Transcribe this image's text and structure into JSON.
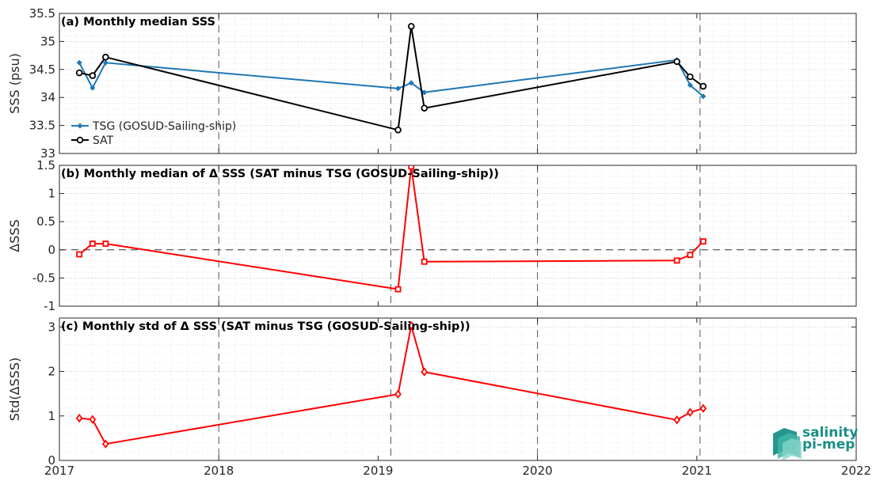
{
  "chart_data": [
    {
      "type": "line",
      "title": "(a) Monthly median SSS",
      "ylabel": "SSS (psu)",
      "xlim": [
        2017,
        2022
      ],
      "ylim": [
        33,
        35.5
      ],
      "yticks": [
        "33",
        "33.5",
        "34",
        "34.5",
        "35",
        "35.5"
      ],
      "grid": true,
      "legend_position": "bottom-left",
      "series": [
        {
          "name": "TSG (GOSUD-Sailing-ship)",
          "color": "#1f77b4",
          "marker": "filled-diamond",
          "x": [
            2017.125,
            2017.208,
            2017.29,
            2019.125,
            2019.208,
            2019.29,
            2020.875,
            2020.958,
            2021.04
          ],
          "y": [
            34.62,
            34.17,
            34.62,
            34.16,
            34.26,
            34.09,
            34.67,
            34.22,
            34.02
          ]
        },
        {
          "name": "SAT",
          "color": "#000000",
          "marker": "open-circle",
          "x": [
            2017.125,
            2017.208,
            2017.29,
            2019.125,
            2019.208,
            2019.29,
            2020.875,
            2020.958,
            2021.04
          ],
          "y": [
            34.44,
            34.39,
            34.72,
            33.42,
            35.27,
            33.81,
            34.64,
            34.37,
            34.2
          ]
        }
      ]
    },
    {
      "type": "line",
      "title": "(b) Monthly median of Δ SSS (SAT minus TSG (GOSUD-Sailing-ship))",
      "ylabel": "ΔSSS",
      "xlim": [
        2017,
        2022
      ],
      "ylim": [
        -1,
        1.5
      ],
      "yticks": [
        "-1",
        "-0.5",
        "0",
        "0.5",
        "1",
        "1.5"
      ],
      "grid": true,
      "reference_line_y": 0,
      "series": [
        {
          "color": "#ff0000",
          "marker": "open-square",
          "x": [
            2017.125,
            2017.208,
            2017.29,
            2019.125,
            2019.208,
            2019.29,
            2020.875,
            2020.958,
            2021.04
          ],
          "y": [
            -0.08,
            0.11,
            0.11,
            -0.7,
            1.48,
            -0.21,
            -0.19,
            -0.09,
            0.15
          ]
        }
      ]
    },
    {
      "type": "line",
      "title": "(c) Monthly std of Δ SSS (SAT minus TSG (GOSUD-Sailing-ship))",
      "ylabel": "Std(ΔSSS)",
      "xlim": [
        2017,
        2022
      ],
      "ylim": [
        0,
        3.2
      ],
      "yticks": [
        "0",
        "1",
        "2",
        "3"
      ],
      "xticks": [
        "2017",
        "2018",
        "2019",
        "2020",
        "2021",
        "2022"
      ],
      "grid": true,
      "series": [
        {
          "color": "#ff0000",
          "marker": "open-diamond",
          "x": [
            2017.125,
            2017.208,
            2017.29,
            2019.125,
            2019.208,
            2019.29,
            2020.875,
            2020.958,
            2021.04
          ],
          "y": [
            0.95,
            0.92,
            0.37,
            1.49,
            3.03,
            1.99,
            0.91,
            1.08,
            1.17
          ]
        }
      ]
    }
  ],
  "vlines": [
    2018,
    2019.08,
    2020,
    2021.02
  ],
  "logo": {
    "line1": "salinity",
    "line2": "pi-mep"
  }
}
